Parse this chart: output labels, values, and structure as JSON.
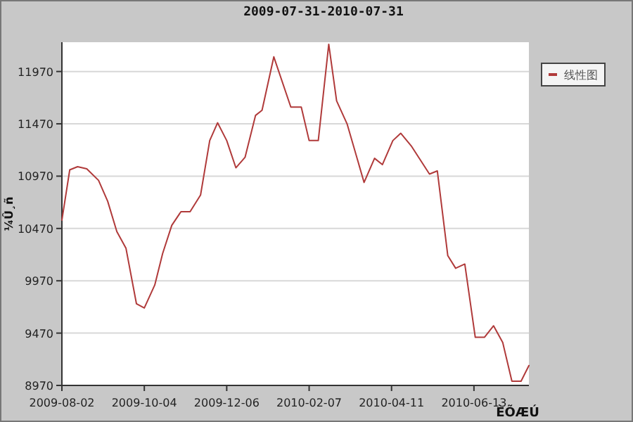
{
  "chart_data": {
    "type": "line",
    "title": "2009-07-31-2010-07-31",
    "ylabel": "¼Û¸ñ",
    "xlabel": "ÈÕÆÚ",
    "x": [
      "2009-08-02",
      "2009-08-08",
      "2009-08-14",
      "2009-08-21",
      "2009-08-30",
      "2009-09-06",
      "2009-09-13",
      "2009-09-20",
      "2009-09-28",
      "2009-10-04",
      "2009-10-12",
      "2009-10-18",
      "2009-10-25",
      "2009-11-01",
      "2009-11-08",
      "2009-11-16",
      "2009-11-23",
      "2009-11-29",
      "2009-12-06",
      "2009-12-13",
      "2009-12-20",
      "2009-12-28",
      "2010-01-02",
      "2010-01-11",
      "2010-01-24",
      "2010-02-01",
      "2010-02-07",
      "2010-02-14",
      "2010-02-22",
      "2010-02-28",
      "2010-03-08",
      "2010-03-21",
      "2010-03-29",
      "2010-04-04",
      "2010-04-12",
      "2010-04-18",
      "2010-04-26",
      "2010-05-10",
      "2010-05-16",
      "2010-05-24",
      "2010-05-30",
      "2010-06-06",
      "2010-06-14",
      "2010-06-21",
      "2010-06-28",
      "2010-07-05",
      "2010-07-12",
      "2010-07-19",
      "2010-07-25"
    ],
    "series": [
      {
        "name": "线性图",
        "color": "#b03a3a",
        "values": [
          10550,
          11030,
          11060,
          11040,
          10930,
          10730,
          10440,
          10280,
          9750,
          9710,
          9930,
          10230,
          10500,
          10630,
          10630,
          10790,
          11310,
          11480,
          11310,
          11050,
          11150,
          11550,
          11600,
          12110,
          11630,
          11630,
          11310,
          11310,
          12230,
          11690,
          11470,
          10910,
          11140,
          11080,
          11310,
          11380,
          11260,
          10990,
          11020,
          10210,
          10090,
          10130,
          9430,
          9430,
          9540,
          9380,
          9010,
          9010,
          9160
        ]
      }
    ],
    "xlim": [
      "2009-08-02",
      "2010-07-25"
    ],
    "xticks": [
      {
        "value": "2009-08-02",
        "label": "2009-08-02"
      },
      {
        "value": "2009-10-04",
        "label": "2009-10-04"
      },
      {
        "value": "2009-12-06",
        "label": "2009-12-06"
      },
      {
        "value": "2010-02-07",
        "label": "2010-02-07"
      },
      {
        "value": "2010-04-11",
        "label": "2010-04-11"
      },
      {
        "value": "2010-06-13",
        "label": "2010-06-13"
      }
    ],
    "ylim": [
      8970,
      12250
    ],
    "yticks": [
      8970,
      9470,
      9970,
      10470,
      10970,
      11470,
      11970
    ],
    "grid": "y",
    "legend": "top right",
    "marker": "none",
    "line_style": "solid"
  }
}
